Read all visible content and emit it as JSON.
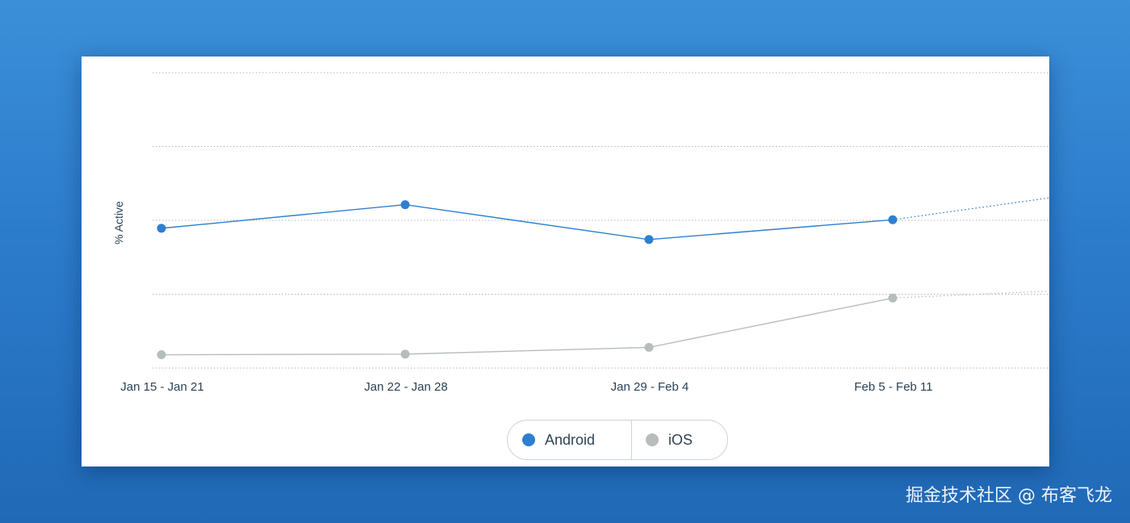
{
  "watermark": "掘金技术社区 @ 布客飞龙",
  "colors": {
    "android": "#2e7fcf",
    "ios": "#b7bdbc",
    "grid": "#aeb7bf",
    "tick": "#2b4257"
  },
  "chart_data": {
    "type": "line",
    "title": "",
    "xlabel": "",
    "ylabel": "% Active",
    "categories": [
      "Jan 15 - Jan 21",
      "Jan 22 - Jan 28",
      "Jan 29 - Feb 4",
      "Feb 5 - Feb 11"
    ],
    "grid": true,
    "y_gridlines": 5,
    "legend_position": "bottom-center",
    "series": [
      {
        "name": "Android",
        "color": "#2e7fcf",
        "values": [
          0.473,
          0.553,
          0.435,
          0.502
        ],
        "projected_continuation": true
      },
      {
        "name": "iOS",
        "color": "#b7bdbc",
        "values": [
          0.045,
          0.047,
          0.07,
          0.237
        ],
        "projected_continuation": true
      }
    ]
  },
  "legend": {
    "items": [
      {
        "label": "Android",
        "color": "#2e7fcf"
      },
      {
        "label": "iOS",
        "color": "#b7bdbc"
      }
    ]
  }
}
